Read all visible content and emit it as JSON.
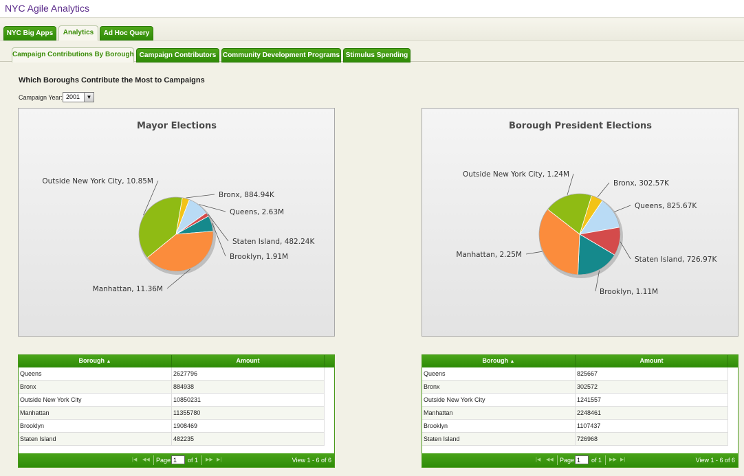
{
  "app": {
    "title": "NYC Agile Analytics"
  },
  "outer_tabs": [
    {
      "label": "NYC Big Apps",
      "active": false
    },
    {
      "label": "Analytics",
      "active": true
    },
    {
      "label": "Ad Hoc Query",
      "active": false
    }
  ],
  "inner_tabs": [
    {
      "label": "Campaign Contributions By Borough",
      "active": true
    },
    {
      "label": "Campaign Contributors",
      "active": false
    },
    {
      "label": "Community Development Programs",
      "active": false
    },
    {
      "label": "Stimulus Spending",
      "active": false
    }
  ],
  "page": {
    "question": "Which Boroughs Contribute the Most to Campaigns",
    "year_label": "Campaign Year:",
    "year_value": "2001"
  },
  "chart_data": [
    {
      "type": "pie",
      "title": "Mayor Elections",
      "categories": [
        "Bronx",
        "Queens",
        "Staten Island",
        "Brooklyn",
        "Manhattan",
        "Outside New York City"
      ],
      "values": [
        884938,
        2627796,
        482235,
        1908469,
        11355780,
        10850231
      ],
      "labels": [
        "Bronx, 884.94K",
        "Queens, 2.63M",
        "Staten Island, 482.24K",
        "Brooklyn, 1.91M",
        "Manhattan, 11.36M",
        "Outside New York City, 10.85M"
      ],
      "colors": [
        "#f2c318",
        "#b9dbf5",
        "#d44b4b",
        "#15898c",
        "#fb8c3c",
        "#8fbb14"
      ]
    },
    {
      "type": "pie",
      "title": "Borough President Elections",
      "categories": [
        "Bronx",
        "Queens",
        "Staten Island",
        "Brooklyn",
        "Manhattan",
        "Outside New York City"
      ],
      "values": [
        302572,
        825667,
        726968,
        1107437,
        2248461,
        1241557
      ],
      "labels": [
        "Bronx, 302.57K",
        "Queens, 825.67K",
        "Staten Island, 726.97K",
        "Brooklyn, 1.11M",
        "Manhattan, 2.25M",
        "Outside New York City, 1.24M"
      ],
      "colors": [
        "#f2c318",
        "#b9dbf5",
        "#d44b4b",
        "#15898c",
        "#fb8c3c",
        "#8fbb14"
      ]
    }
  ],
  "tables": [
    {
      "headers": [
        "Borough",
        "Amount"
      ],
      "sort_icon": "sort-asc-icon",
      "rows": [
        [
          "Queens",
          "2627796"
        ],
        [
          "Bronx",
          "884938"
        ],
        [
          "Outside New York City",
          "10850231"
        ],
        [
          "Manhattan",
          "11355780"
        ],
        [
          "Brooklyn",
          "1908469"
        ],
        [
          "Staten Island",
          "482235"
        ]
      ],
      "pager": {
        "page_label": "Page",
        "page_value": "1",
        "of_label": "of 1",
        "view_label": "View 1 - 6 of 6"
      }
    },
    {
      "headers": [
        "Borough",
        "Amount"
      ],
      "sort_icon": "sort-asc-icon",
      "rows": [
        [
          "Queens",
          "825667"
        ],
        [
          "Bronx",
          "302572"
        ],
        [
          "Outside New York City",
          "1241557"
        ],
        [
          "Manhattan",
          "2248461"
        ],
        [
          "Brooklyn",
          "1107437"
        ],
        [
          "Staten Island",
          "726968"
        ]
      ],
      "pager": {
        "page_label": "Page",
        "page_value": "1",
        "of_label": "of 1",
        "view_label": "View 1 - 6 of 6"
      }
    }
  ]
}
